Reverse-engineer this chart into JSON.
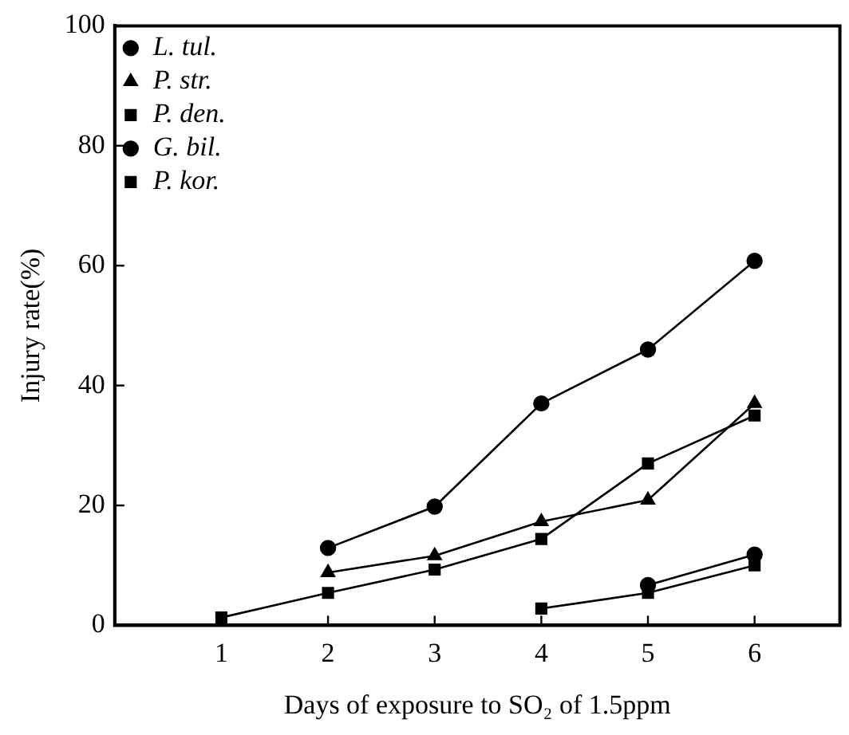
{
  "chart_data": {
    "type": "line",
    "xlabel": "Days of exposure to SO₂ of 1.5ppm",
    "ylabel": "Injury rate(%)",
    "x": [
      1,
      2,
      3,
      4,
      5,
      6
    ],
    "xlim": [
      0,
      6.8
    ],
    "xticks": [
      1,
      2,
      3,
      4,
      5,
      6
    ],
    "ylim": [
      0,
      100
    ],
    "yticks": [
      0,
      20,
      40,
      60,
      80,
      100
    ],
    "grid": false,
    "legend": "top left",
    "line_style": "solid",
    "series": [
      {
        "name": "L. tul.",
        "color": "#000000",
        "marker": "circle",
        "values": [
          null,
          12.9,
          19.8,
          37,
          46,
          60.8
        ]
      },
      {
        "name": "P. str.",
        "color": "#000000",
        "marker": "triangle",
        "values": [
          null,
          8.8,
          11.6,
          17.3,
          20.9,
          37
        ]
      },
      {
        "name": "P. den.",
        "color": "#000000",
        "marker": "square",
        "values": [
          1.3,
          5.4,
          9.3,
          14.4,
          27,
          35
        ]
      },
      {
        "name": "G. bil.",
        "color": "#000000",
        "marker": "circle",
        "values": [
          null,
          null,
          null,
          null,
          6.7,
          11.8
        ]
      },
      {
        "name": "P. kor.",
        "color": "#000000",
        "marker": "square",
        "values": [
          null,
          null,
          null,
          2.8,
          5.4,
          10
        ]
      }
    ]
  }
}
